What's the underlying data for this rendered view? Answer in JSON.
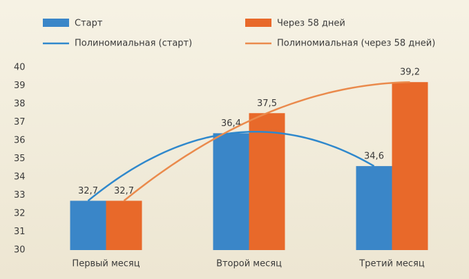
{
  "chart_data": {
    "type": "bar",
    "categories": [
      "Первый месяц",
      "Второй месяц",
      "Третий месяц"
    ],
    "series": [
      {
        "name": "Старт",
        "color": "#3a86c8",
        "values": [
          32.7,
          36.4,
          34.6
        ],
        "value_labels": [
          "32,7",
          "36,4",
          "34,6"
        ],
        "trendline": "Полиномиальная (старт)",
        "trendline_color": "#2f88cc"
      },
      {
        "name": "Через 58 дней",
        "color": "#e8692a",
        "values": [
          32.7,
          37.5,
          39.2
        ],
        "value_labels": [
          "32,7",
          "37,5",
          "39,2"
        ],
        "trendline": "Полиномиальная (через 58 дней)",
        "trendline_color": "#ea8a4c"
      }
    ],
    "ylim": [
      30,
      40
    ],
    "yticks": [
      30,
      31,
      32,
      33,
      34,
      35,
      36,
      37,
      38,
      39,
      40
    ],
    "grid": false
  }
}
